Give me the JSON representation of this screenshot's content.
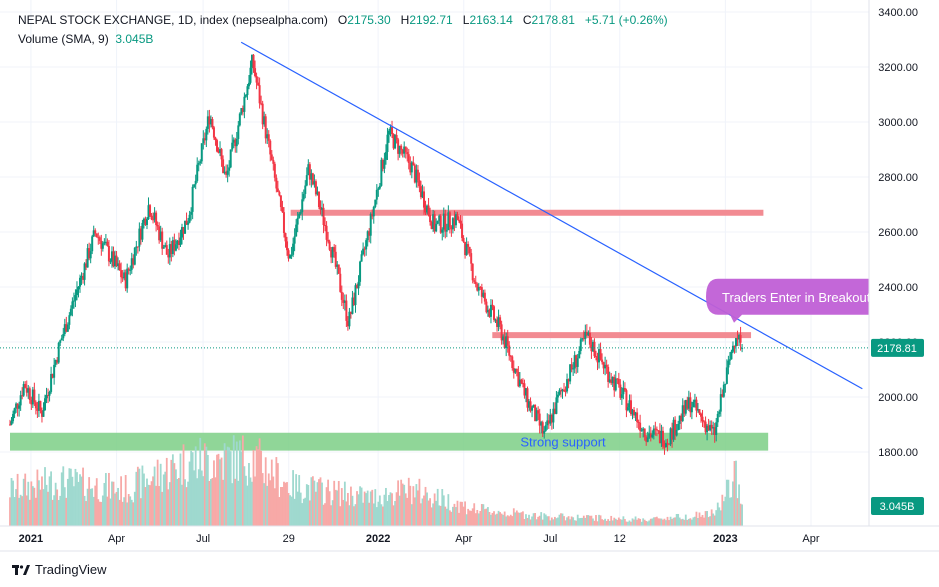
{
  "header": {
    "symbol": "NEPAL STOCK EXCHANGE, 1D, index (nepsealpha.com)",
    "open_label": "O",
    "open": "2175.30",
    "high_label": "H",
    "high": "2192.71",
    "low_label": "L",
    "low": "2163.14",
    "close_label": "C",
    "close": "2178.81",
    "change": "+5.71 (+0.26%)",
    "volume_label": "Volume (SMA, 9)",
    "volume_value": "3.045B"
  },
  "footer": {
    "brand": "TradingView"
  },
  "colors": {
    "up": "#089981",
    "down": "#f23645",
    "up_volume": "#9fd9cf",
    "down_volume": "#f7a9a7",
    "trendline": "#2962ff",
    "resistance": "#f28b92",
    "support_zone": "#7ccf86",
    "callout": "#c05fd6",
    "grid": "#f0f3fa",
    "axis_text": "#131722"
  },
  "chart_data": {
    "type": "candlestick",
    "price_axis": {
      "ylim": [
        1720,
        3400
      ],
      "ticks": [
        "3400.00",
        "3200.00",
        "3000.00",
        "2800.00",
        "2600.00",
        "2400.00",
        "2200.00",
        "2000.00",
        "1800.00"
      ],
      "ticks_num": [
        3400,
        3200,
        3000,
        2800,
        2600,
        2400,
        2200,
        2000,
        1800
      ],
      "position": "right"
    },
    "time_axis": {
      "ticks": [
        "2021",
        "Apr",
        "Jul",
        "29",
        "2022",
        "Apr",
        "Jul",
        "12",
        "2023",
        "Apr"
      ],
      "bold": [
        "2021",
        "2022",
        "2023"
      ],
      "range": [
        "2020-12-10",
        "2023-06-01"
      ],
      "tick_dates": [
        "2021-01-01",
        "2021-04-01",
        "2021-07-01",
        "2021-09-29",
        "2022-01-01",
        "2022-04-01",
        "2022-07-01",
        "2022-09-12",
        "2023-01-01",
        "2023-04-01"
      ]
    },
    "last_price": {
      "value": 2178.81,
      "label": "2178.81"
    },
    "last_volume_label": "3.045B",
    "grid": true,
    "anchors": [
      [
        "2020-12-10",
        1900
      ],
      [
        "2020-12-25",
        2050
      ],
      [
        "2021-01-12",
        1940
      ],
      [
        "2021-02-01",
        2200
      ],
      [
        "2021-03-10",
        2600
      ],
      [
        "2021-04-10",
        2420
      ],
      [
        "2021-05-05",
        2700
      ],
      [
        "2021-05-25",
        2510
      ],
      [
        "2021-06-15",
        2650
      ],
      [
        "2021-07-08",
        3030
      ],
      [
        "2021-07-25",
        2790
      ],
      [
        "2021-08-22",
        3220
      ],
      [
        "2021-09-10",
        2870
      ],
      [
        "2021-09-30",
        2500
      ],
      [
        "2021-10-20",
        2830
      ],
      [
        "2021-11-10",
        2580
      ],
      [
        "2021-12-01",
        2270
      ],
      [
        "2021-12-25",
        2650
      ],
      [
        "2022-01-12",
        2960
      ],
      [
        "2022-02-05",
        2840
      ],
      [
        "2022-03-01",
        2620
      ],
      [
        "2022-03-25",
        2650
      ],
      [
        "2022-04-15",
        2400
      ],
      [
        "2022-05-10",
        2240
      ],
      [
        "2022-06-05",
        2000
      ],
      [
        "2022-06-25",
        1860
      ],
      [
        "2022-07-10",
        2000
      ],
      [
        "2022-08-08",
        2220
      ],
      [
        "2022-09-05",
        2060
      ],
      [
        "2022-10-10",
        1870
      ],
      [
        "2022-11-01",
        1850
      ],
      [
        "2022-11-25",
        1980
      ],
      [
        "2022-12-20",
        1860
      ],
      [
        "2023-01-12",
        2240
      ],
      [
        "2023-01-20",
        2179
      ]
    ],
    "volume_anchors": [
      [
        "2020-12-10",
        0.45
      ],
      [
        "2021-02-01",
        0.55
      ],
      [
        "2021-04-10",
        0.45
      ],
      [
        "2021-06-15",
        0.8
      ],
      [
        "2021-08-22",
        0.85
      ],
      [
        "2021-09-30",
        0.5
      ],
      [
        "2021-12-25",
        0.35
      ],
      [
        "2022-02-05",
        0.45
      ],
      [
        "2022-04-15",
        0.2
      ],
      [
        "2022-06-25",
        0.12
      ],
      [
        "2022-10-10",
        0.08
      ],
      [
        "2022-12-20",
        0.15
      ],
      [
        "2023-01-12",
        0.6
      ],
      [
        "2023-01-20",
        0.35
      ]
    ],
    "trendline": {
      "from": [
        "2021-08-10",
        3290
      ],
      "to": [
        "2023-05-25",
        2030
      ]
    },
    "resistance_lines": [
      {
        "from": "2021-10-01",
        "to": "2023-02-10",
        "value": 2670
      },
      {
        "from": "2022-05-01",
        "to": "2023-01-28",
        "value": 2225
      }
    ],
    "support_zone": {
      "from": "2020-12-10",
      "to": "2023-02-15",
      "low": 1805,
      "high": 1870,
      "label": "Strong support"
    },
    "annotations": [
      {
        "text": "Traders Enter in Breakout",
        "date": "2023-01-08",
        "value": 2350
      }
    ]
  }
}
